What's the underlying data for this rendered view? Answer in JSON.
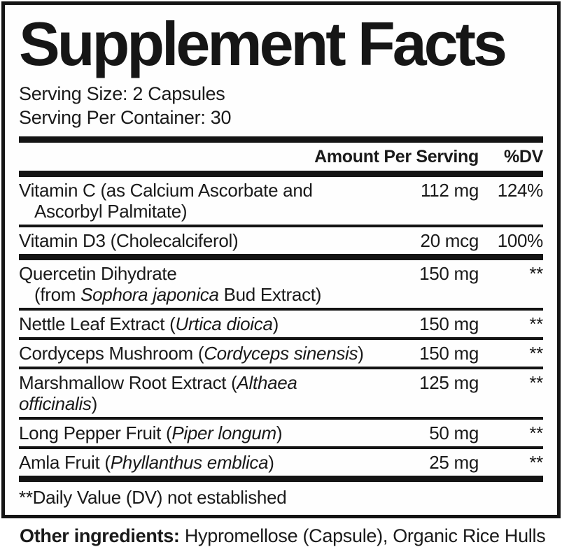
{
  "panel": {
    "title": "Supplement Facts",
    "serving_size": "Serving Size: 2 Capsules",
    "servings_per_container": "Serving Per Container: 30",
    "amount_header": "Amount Per Serving",
    "dv_header": "%DV",
    "footnote": "**Daily Value (DV) not established"
  },
  "table": {
    "rows": [
      {
        "divider_before": "none",
        "lines": [
          {
            "pre": "Vitamin C (as Calcium Ascorbate and",
            "italic": "",
            "post": "",
            "indent": false
          },
          {
            "pre": "Ascorbyl Palmitate)",
            "italic": "",
            "post": "",
            "indent": true
          }
        ],
        "amount": "112 mg",
        "dv": "124%"
      },
      {
        "divider_before": "thin",
        "lines": [
          {
            "pre": "Vitamin D3 (Cholecalciferol)",
            "italic": "",
            "post": "",
            "indent": false
          }
        ],
        "amount": "20 mcg",
        "dv": "100%"
      },
      {
        "divider_before": "thick",
        "lines": [
          {
            "pre": "Quercetin Dihydrate",
            "italic": "",
            "post": "",
            "indent": false
          },
          {
            "pre": "(from ",
            "italic": "Sophora japonica",
            "post": " Bud Extract)",
            "indent": true
          }
        ],
        "amount": "150 mg",
        "dv": "**"
      },
      {
        "divider_before": "thin",
        "lines": [
          {
            "pre": "Nettle Leaf Extract (",
            "italic": "Urtica dioica",
            "post": ")",
            "indent": false
          }
        ],
        "amount": "150 mg",
        "dv": "**"
      },
      {
        "divider_before": "thin",
        "lines": [
          {
            "pre": "Cordyceps Mushroom (",
            "italic": "Cordyceps sinensis",
            "post": ")",
            "indent": false
          }
        ],
        "amount": "150 mg",
        "dv": "**"
      },
      {
        "divider_before": "thin",
        "lines": [
          {
            "pre": "Marshmallow Root Extract (",
            "italic": "Althaea officinalis",
            "post": ")",
            "indent": false
          }
        ],
        "amount": "125 mg",
        "dv": "**"
      },
      {
        "divider_before": "thin",
        "lines": [
          {
            "pre": "Long Pepper Fruit (",
            "italic": "Piper longum",
            "post": ")",
            "indent": false
          }
        ],
        "amount": "50 mg",
        "dv": "**"
      },
      {
        "divider_before": "thin",
        "lines": [
          {
            "pre": "Amla Fruit (",
            "italic": "Phyllanthus emblica",
            "post": ")",
            "indent": false
          }
        ],
        "amount": "25 mg",
        "dv": "**"
      }
    ]
  },
  "other_ingredients": {
    "label": "Other ingredients:",
    "text": " Hypromellose (Capsule), Organic Rice Hulls"
  },
  "colors": {
    "text": "#1a1a1a",
    "rule": "#141414",
    "background": "#ffffff"
  }
}
